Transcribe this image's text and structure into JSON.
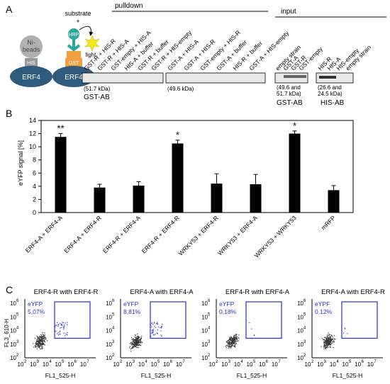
{
  "panelA": {
    "letter": "A",
    "diagram": {
      "substrate": "substrate",
      "plus": "+",
      "hrp": "HRP",
      "light": "light",
      "beads": "Ni-\nbeads",
      "his": "HIS",
      "gst": "GST",
      "erf4": "ERF4"
    },
    "pulldown": {
      "title": "pulldown",
      "blot1_lanes": [
        "GST-R + HIS-R",
        "GST-R + HIS-A",
        "GST-empty + HIS-A",
        "HIS-A + buffer",
        "GST-R + buffer",
        "GST-R + HIS-empty"
      ],
      "blot2_lanes": [
        "GST-A + HIS-A",
        "GST-A + HIS-R",
        "GST-empty + HIS-R",
        "GST-A + buffer",
        "HIS-R + buffer",
        "GST-A + HIS-empty"
      ],
      "blot1_size": "(51.7 kDa)",
      "blot2_size": "(49.6 kDa)",
      "antibody": "GST-AB"
    },
    "input": {
      "title": "input",
      "blot3_lanes": [
        "empty strain",
        "GST-A",
        "GST-R",
        "GST-empty"
      ],
      "blot4_lanes": [
        "HIS-R",
        "HIS-A",
        "HIS-empty",
        "empty strain"
      ],
      "blot3_size": "(49.6 and\n51.7 kDa)",
      "blot4_size": "(26.6 and\n24.5 kDa)",
      "antibody3": "GST-AB",
      "antibody4": "HIS-AB"
    }
  },
  "panelB": {
    "letter": "B",
    "chart_data": {
      "type": "bar",
      "ylabel": "eYFP signal [%]",
      "ylim": [
        0,
        14
      ],
      "yticks": [
        0,
        2,
        4,
        6,
        8,
        10,
        12,
        14
      ],
      "categories": [
        "ERF4-A + ERF4-A",
        "ERF4-A + ERF4-R",
        "ERF4-R + ERF4-A",
        "ERF4-R + ERF4-R",
        "WRKY53 + ERF4-R",
        "WRKY53 + ERF4-A",
        "WRKY53 + WRKY53",
        "mRFP"
      ],
      "values": [
        11.5,
        3.8,
        4.1,
        10.5,
        4.4,
        4.3,
        12.0,
        3.4
      ],
      "errors": [
        0.5,
        0.5,
        0.6,
        0.5,
        1.5,
        1.5,
        0.4,
        0.7
      ],
      "significance": [
        "**",
        "",
        "",
        "*",
        "",
        "",
        "*",
        ""
      ]
    }
  },
  "panelC": {
    "letter": "C",
    "xlabel": "FL1_525-H",
    "ylabel": "FL3_610-H",
    "plots": [
      {
        "title": "ERF4-R with ERF4-R",
        "gate_label": "eYFP",
        "gate_pct": "5,07%"
      },
      {
        "title": "ERF4-A with ERF4-A",
        "gate_label": "eYFP",
        "gate_pct": "8,81%"
      },
      {
        "title": "ERF4-R with ERF4-A",
        "gate_label": "eYFP",
        "gate_pct": "0,18%"
      },
      {
        "title": "ERF4-A with ERF4-R",
        "gate_label": "eYPF",
        "gate_pct": "0,12%"
      }
    ],
    "exponents": [
      "2",
      "3",
      "4",
      "5",
      "6",
      "7"
    ],
    "tick_base": "10"
  },
  "colors": {
    "gate": "#2b2bd6",
    "bar": "#000000",
    "beads": "#b0b0b0",
    "erf4": "#2f5b7d",
    "gst": "#f0a040",
    "hrp": "#2aa89a",
    "light": "#f5e81a"
  }
}
